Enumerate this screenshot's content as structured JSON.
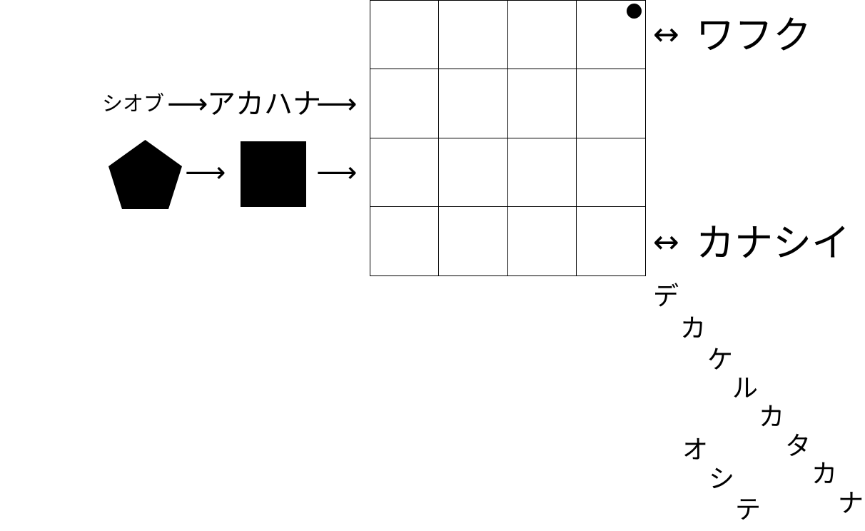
{
  "left": {
    "row1": {
      "small_text": "シオブ",
      "arrow1": "⟶",
      "big_text": "アカハナ",
      "arrow2": "⟶"
    },
    "row2": {
      "arrow1": "⟶",
      "arrow2": "⟶"
    }
  },
  "grid": {
    "rows": 4,
    "cols": 4,
    "marked_cell": "row 1, col 4"
  },
  "right": {
    "top": {
      "arrow": "↔",
      "text": "ワフク"
    },
    "bottom": {
      "arrow": "↔",
      "text": "カナシイ"
    }
  },
  "diagonal_chars": {
    "line1": [
      "デ",
      "カ",
      "ケ",
      "ル",
      "カ",
      "タ",
      "カ",
      "ナ"
    ],
    "line2": [
      "オ",
      "シ",
      "テ"
    ]
  }
}
